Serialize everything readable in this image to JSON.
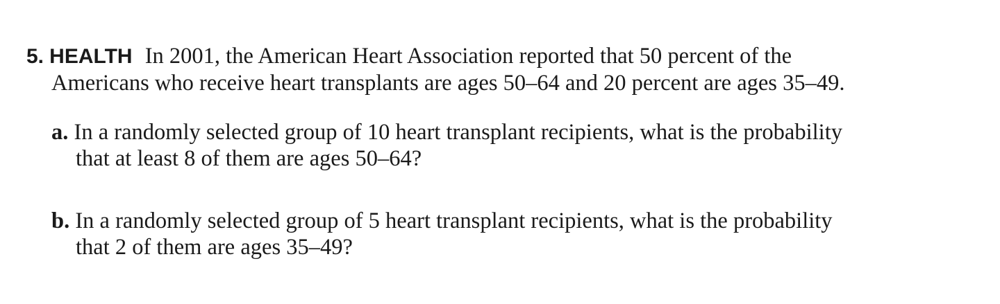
{
  "problem": {
    "number": "5.",
    "topic": "HEALTH",
    "stem_line1": "In 2001, the American Heart Association reported that 50 percent of the",
    "stem_line2": "Americans who receive heart transplants are ages 50–64 and 20 percent are ages 35–49.",
    "parts": [
      {
        "label": "a.",
        "line1": "In a randomly selected group of 10 heart transplant recipients, what is the probability",
        "line2": "that at least 8 of them are ages 50–64?"
      },
      {
        "label": "b.",
        "line1": "In a randomly selected group of 5 heart transplant recipients, what is the probability",
        "line2": "that 2 of them are ages 35–49?"
      }
    ]
  }
}
